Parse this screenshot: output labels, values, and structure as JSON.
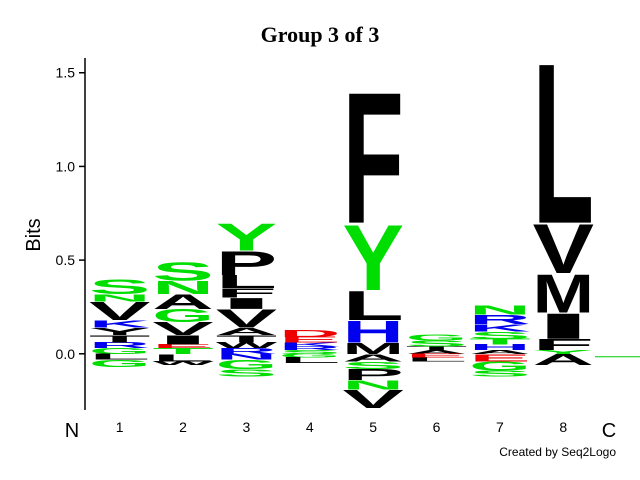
{
  "chart_data": {
    "type": "logo",
    "title": "Group 3 of 3",
    "y_label": "Bits",
    "n_label": "N",
    "c_label": "C",
    "credit": "Created by Seq2Logo",
    "ylim": [
      -0.3,
      1.6
    ],
    "yticks": [
      {
        "value": 0,
        "label": "0.0"
      },
      {
        "value": 0.5,
        "label": "0.5"
      },
      {
        "value": 1,
        "label": "1.0"
      },
      {
        "value": 1.5,
        "label": "1.5"
      }
    ],
    "categories": [
      "1",
      "2",
      "3",
      "4",
      "5",
      "6",
      "7",
      "8"
    ],
    "positions": [
      {
        "positive": [
          {
            "letter": "G",
            "height": 0.03,
            "color": "#00dd00"
          },
          {
            "letter": "R",
            "height": 0.03,
            "color": "#0000ee"
          },
          {
            "letter": "T",
            "height": 0.04,
            "color": "#000000"
          },
          {
            "letter": "Y",
            "height": 0.04,
            "color": "#000000"
          },
          {
            "letter": "K",
            "height": 0.04,
            "color": "#0000ee"
          },
          {
            "letter": "V",
            "height": 0.1,
            "color": "#000000"
          },
          {
            "letter": "N",
            "height": 0.04,
            "color": "#00dd00"
          },
          {
            "letter": "S",
            "height": 0.08,
            "color": "#00dd00"
          }
        ],
        "negative": [
          {
            "letter": "L",
            "height": 0.03,
            "color": "#000000"
          },
          {
            "letter": "G",
            "height": 0.04,
            "color": "#00dd00"
          }
        ]
      },
      {
        "positive": [
          {
            "letter": "T",
            "height": 0.03,
            "color": "#00dd00"
          },
          {
            "letter": "E",
            "height": 0.02,
            "color": "#ee0000"
          },
          {
            "letter": "I",
            "height": 0.05,
            "color": "#000000"
          },
          {
            "letter": "V",
            "height": 0.07,
            "color": "#000000"
          },
          {
            "letter": "G",
            "height": 0.07,
            "color": "#00dd00"
          },
          {
            "letter": "A",
            "height": 0.08,
            "color": "#000000"
          },
          {
            "letter": "N",
            "height": 0.07,
            "color": "#00dd00"
          },
          {
            "letter": "S",
            "height": 0.1,
            "color": "#00dd00"
          }
        ],
        "negative": [
          {
            "letter": "L",
            "height": 0.04,
            "color": "#000000"
          },
          {
            "letter": "W",
            "height": 0.02,
            "color": "#000000"
          }
        ]
      },
      {
        "positive": [
          {
            "letter": "R",
            "height": 0.03,
            "color": "#0000ee"
          },
          {
            "letter": "W",
            "height": 0.03,
            "color": "#000000"
          },
          {
            "letter": "T",
            "height": 0.04,
            "color": "#000000"
          },
          {
            "letter": "A",
            "height": 0.04,
            "color": "#000000"
          },
          {
            "letter": "V",
            "height": 0.1,
            "color": "#000000"
          },
          {
            "letter": "I",
            "height": 0.06,
            "color": "#000000"
          },
          {
            "letter": "F",
            "height": 0.05,
            "color": "#000000"
          },
          {
            "letter": "L",
            "height": 0.07,
            "color": "#000000"
          },
          {
            "letter": "P",
            "height": 0.13,
            "color": "#000000"
          },
          {
            "letter": "Y",
            "height": 0.15,
            "color": "#00dd00"
          }
        ],
        "negative": [
          {
            "letter": "N",
            "height": 0.03,
            "color": "#0000ee"
          },
          {
            "letter": "G",
            "height": 0.05,
            "color": "#00dd00"
          },
          {
            "letter": "S",
            "height": 0.04,
            "color": "#00dd00"
          }
        ]
      },
      {
        "positive": [
          {
            "letter": "S",
            "height": 0.02,
            "color": "#00dd00"
          },
          {
            "letter": "R",
            "height": 0.02,
            "color": "#0000ee"
          },
          {
            "letter": "K",
            "height": 0.02,
            "color": "#0000ee"
          },
          {
            "letter": "E",
            "height": 0.03,
            "color": "#ee0000"
          },
          {
            "letter": "D",
            "height": 0.04,
            "color": "#ee0000"
          }
        ],
        "negative": [
          {
            "letter": "G",
            "height": 0.02,
            "color": "#00dd00"
          },
          {
            "letter": "L",
            "height": 0.03,
            "color": "#000000"
          }
        ]
      },
      {
        "positive": [
          {
            "letter": "M",
            "height": 0.06,
            "color": "#000000"
          },
          {
            "letter": "H",
            "height": 0.12,
            "color": "#0000ee"
          },
          {
            "letter": "L",
            "height": 0.16,
            "color": "#000000"
          },
          {
            "letter": "Y",
            "height": 0.36,
            "color": "#00dd00"
          },
          {
            "letter": "F",
            "height": 0.72,
            "color": "#000000"
          }
        ],
        "negative": [
          {
            "letter": "A",
            "height": 0.04,
            "color": "#000000"
          },
          {
            "letter": "S",
            "height": 0.04,
            "color": "#00dd00"
          },
          {
            "letter": "P",
            "height": 0.06,
            "color": "#000000"
          },
          {
            "letter": "N",
            "height": 0.05,
            "color": "#00dd00"
          },
          {
            "letter": "V",
            "height": 0.1,
            "color": "#000000"
          }
        ]
      },
      {
        "positive": [
          {
            "letter": "A",
            "height": 0.02,
            "color": "#000000"
          },
          {
            "letter": "T",
            "height": 0.02,
            "color": "#000000"
          },
          {
            "letter": "S",
            "height": 0.03,
            "color": "#00dd00"
          },
          {
            "letter": "G",
            "height": 0.03,
            "color": "#00dd00"
          }
        ],
        "negative": [
          {
            "letter": "E",
            "height": 0.02,
            "color": "#ee0000"
          },
          {
            "letter": "L",
            "height": 0.02,
            "color": "#000000"
          }
        ]
      },
      {
        "positive": [
          {
            "letter": "A",
            "height": 0.02,
            "color": "#000000"
          },
          {
            "letter": "H",
            "height": 0.03,
            "color": "#0000ee"
          },
          {
            "letter": "T",
            "height": 0.03,
            "color": "#00dd00"
          },
          {
            "letter": "S",
            "height": 0.04,
            "color": "#00dd00"
          },
          {
            "letter": "K",
            "height": 0.04,
            "color": "#0000ee"
          },
          {
            "letter": "R",
            "height": 0.05,
            "color": "#0000ee"
          },
          {
            "letter": "N",
            "height": 0.05,
            "color": "#00dd00"
          }
        ],
        "negative": [
          {
            "letter": "E",
            "height": 0.04,
            "color": "#ee0000"
          },
          {
            "letter": "G",
            "height": 0.05,
            "color": "#00dd00"
          },
          {
            "letter": "S",
            "height": 0.03,
            "color": "#00dd00"
          }
        ]
      },
      {
        "positive": [
          {
            "letter": "Y",
            "height": 0.02,
            "color": "#00dd00"
          },
          {
            "letter": "F",
            "height": 0.06,
            "color": "#000000"
          },
          {
            "letter": "I",
            "height": 0.14,
            "color": "#000000"
          },
          {
            "letter": "M",
            "height": 0.21,
            "color": "#000000"
          },
          {
            "letter": "V",
            "height": 0.27,
            "color": "#000000"
          },
          {
            "letter": "L",
            "height": 0.88,
            "color": "#000000"
          }
        ],
        "negative": [
          {
            "letter": "A",
            "height": 0.06,
            "color": "#000000"
          }
        ]
      }
    ]
  }
}
